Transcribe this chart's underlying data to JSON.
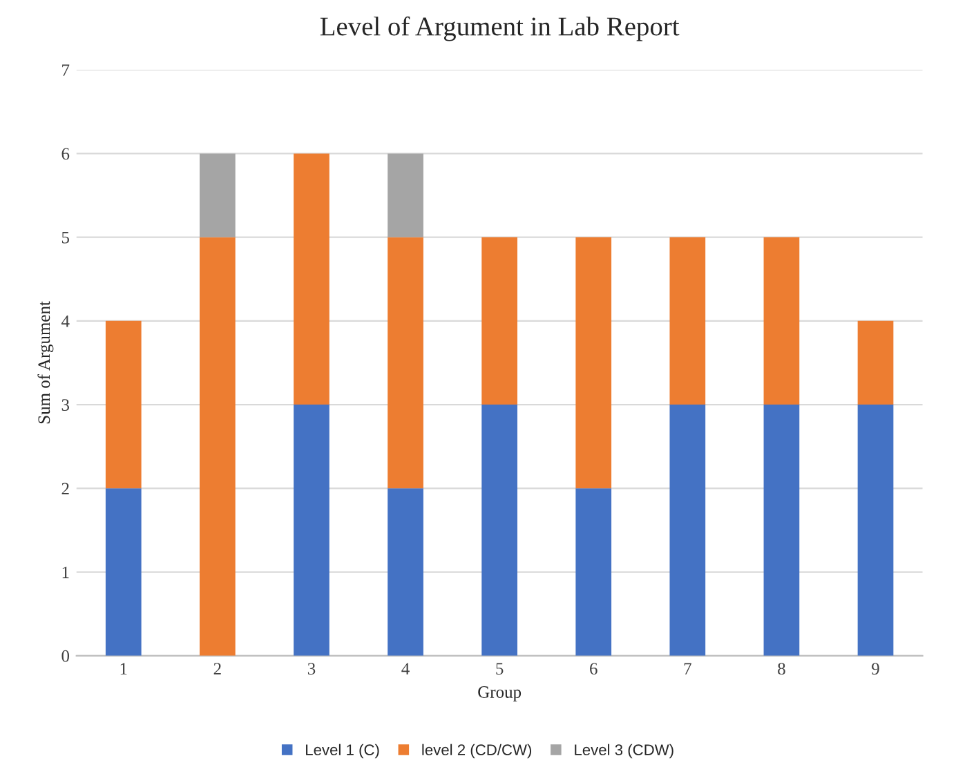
{
  "chart_data": {
    "type": "bar",
    "title": "Level of Argument in Lab Report",
    "xlabel": "Group",
    "ylabel": "Sum of Argument",
    "categories": [
      "1",
      "2",
      "3",
      "4",
      "5",
      "6",
      "7",
      "8",
      "9"
    ],
    "series": [
      {
        "name": "Level 1 (C)",
        "color": "#4472c4",
        "values": [
          2,
          0,
          3,
          2,
          3,
          2,
          3,
          3,
          3
        ]
      },
      {
        "name": "level 2 (CD/CW)",
        "color": "#ed7d31",
        "values": [
          2,
          5,
          3,
          3,
          2,
          3,
          2,
          2,
          1
        ]
      },
      {
        "name": "Level 3 (CDW)",
        "color": "#a5a5a5",
        "values": [
          0,
          1,
          0,
          1,
          0,
          0,
          0,
          0,
          0
        ]
      }
    ],
    "stacked": true,
    "ylim": [
      0,
      7
    ],
    "yticks": [
      0,
      1,
      2,
      3,
      4,
      5,
      6,
      7
    ],
    "grid": "y",
    "legend": "bottom"
  }
}
